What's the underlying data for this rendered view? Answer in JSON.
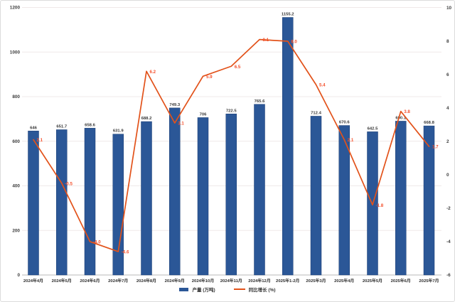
{
  "chart_data": {
    "type": "bar",
    "subtype": "bar+line combo",
    "title": "",
    "categories": [
      "2024年4月",
      "2024年5月",
      "2024年6月",
      "2024年7月",
      "2024年8月",
      "2024年9月",
      "2024年10月",
      "2024年11月",
      "2024年12月",
      "2025年1-2月",
      "2025年3月",
      "2025年4月",
      "2025年5月",
      "2025年6月",
      "2025年7月"
    ],
    "series": [
      {
        "name": "产量 (万吨)",
        "type": "bar",
        "axis": "left",
        "color": "#2b5797",
        "values": [
          646,
          651.7,
          658.6,
          631.9,
          688.2,
          749.3,
          706,
          722.5,
          765.6,
          1155.2,
          712.4,
          670.6,
          642.5,
          690.1,
          668.8
        ],
        "labels": [
          "646",
          "651.7",
          "658.6",
          "631.9",
          "688.2",
          "749.3",
          "706",
          "722.5",
          "765.6",
          "1155.2",
          "712.4",
          "670.6",
          "642.5",
          "690.1",
          "668.8"
        ]
      },
      {
        "name": "同比增长 (%)",
        "type": "line",
        "axis": "right",
        "color": "#e2521a",
        "label_color": "#f4502c",
        "values": [
          2.1,
          -0.5,
          -4.0,
          -4.6,
          6.2,
          3.1,
          5.9,
          6.5,
          8.1,
          8.0,
          5.4,
          2.1,
          -1.8,
          3.8,
          1.7
        ],
        "labels": [
          "2.1",
          "-0.5",
          "-4.0",
          "-4.6",
          "6.2",
          "3.1",
          "5.9",
          "6.5",
          "8.1",
          "8.0",
          "5.4",
          "2.1",
          "-1.8",
          "3.8",
          "1.7"
        ]
      }
    ],
    "left_axis": {
      "min": 0,
      "max": 1200,
      "step": 200,
      "ticks": [
        "0",
        "200",
        "400",
        "600",
        "800",
        "1000",
        "1200"
      ]
    },
    "right_axis": {
      "min": -6,
      "max": 10,
      "step": 2,
      "ticks": [
        "-6",
        "-4",
        "-2",
        "0",
        "2",
        "4",
        "6",
        "8",
        "10"
      ]
    },
    "grid": true,
    "legend_position": "bottom",
    "colors": {
      "bar_fill": "#2b5797",
      "bar_stroke": "#1c3f74",
      "line": "#e2521a",
      "line_label": "#f4502c",
      "bar_label": "#3a3a3a",
      "axis_text": "#3d3d3d",
      "gridline": "#efe9e9",
      "axis_line": "#b9b9b9"
    }
  },
  "legend": {
    "production_label": "产量 (万吨)",
    "yoy_label": "同比增长 (%)"
  }
}
